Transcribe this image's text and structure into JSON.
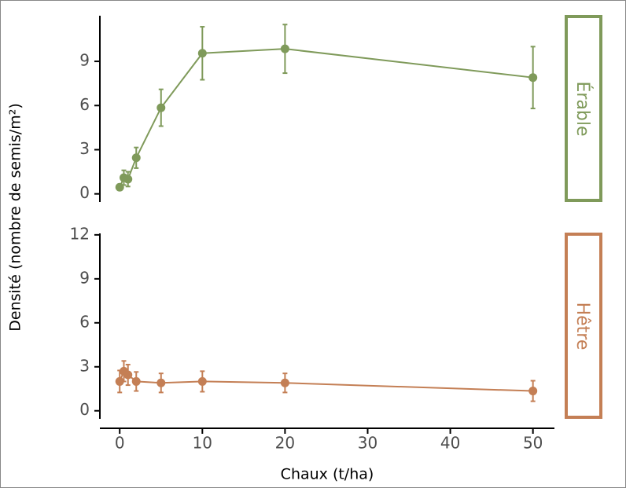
{
  "chart_data": [
    {
      "type": "line",
      "facet": "Érable",
      "color": "#7f9a5a",
      "ylabel": "Densité (nombre de semis/m²)",
      "x": [
        0,
        0.5,
        1,
        2,
        5,
        10,
        20,
        50
      ],
      "values": [
        0.45,
        1.1,
        1.0,
        2.45,
        5.85,
        9.55,
        9.85,
        7.9
      ],
      "errors": [
        0.2,
        0.5,
        0.5,
        0.7,
        1.25,
        1.8,
        1.65,
        2.1
      ],
      "xlim": [
        -2.4,
        52.6
      ],
      "ylim": [
        -0.55,
        12.1
      ],
      "yticks": [
        0,
        3,
        6,
        9
      ]
    },
    {
      "type": "line",
      "facet": "Hêtre",
      "color": "#c47f55",
      "xlabel": "Chaux (t/ha)",
      "x": [
        0,
        0.5,
        1,
        2,
        5,
        10,
        20,
        50
      ],
      "values": [
        2.0,
        2.7,
        2.45,
        2.0,
        1.9,
        2.0,
        1.9,
        1.35
      ],
      "errors": [
        0.75,
        0.7,
        0.7,
        0.65,
        0.65,
        0.7,
        0.65,
        0.7
      ],
      "xlim": [
        -2.4,
        52.6
      ],
      "xticks": [
        0,
        10,
        20,
        30,
        40,
        50
      ],
      "ylim": [
        -0.55,
        12.1
      ],
      "yticks": [
        0,
        3,
        6,
        9,
        12
      ]
    }
  ]
}
